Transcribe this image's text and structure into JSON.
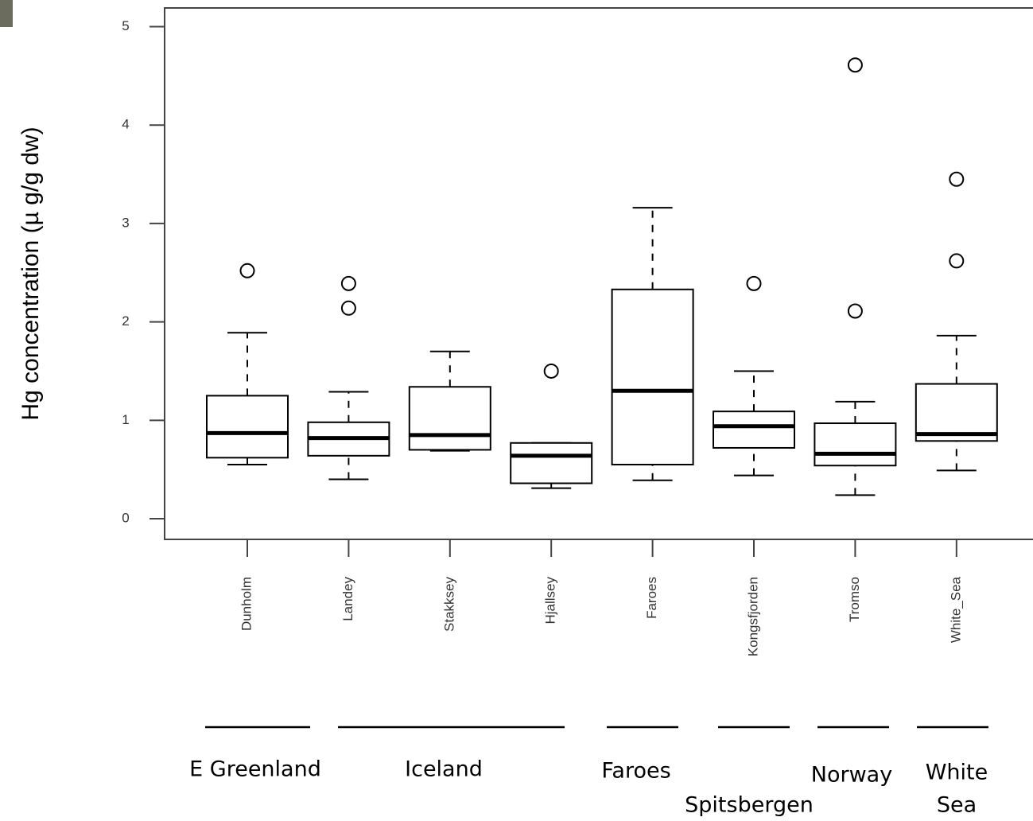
{
  "chart_data": {
    "type": "box",
    "y_label": "Hg concentration (µ g/g dw)",
    "categories": [
      "Dunholm",
      "Landey",
      "Stakksey",
      "Hjallsey",
      "Faroes",
      "Kongsfjorden",
      "Tromso",
      "White_Sea"
    ],
    "whisker_low": [
      0.55,
      0.4,
      0.69,
      0.31,
      0.39,
      0.44,
      0.24,
      0.49
    ],
    "q1": [
      0.62,
      0.64,
      0.7,
      0.36,
      0.55,
      0.72,
      0.54,
      0.79
    ],
    "median": [
      0.87,
      0.82,
      0.85,
      0.64,
      1.3,
      0.94,
      0.66,
      0.86
    ],
    "q3": [
      1.25,
      0.98,
      1.34,
      0.77,
      2.33,
      1.09,
      0.97,
      1.37
    ],
    "whisker_high": [
      1.89,
      1.29,
      1.7,
      0.77,
      3.16,
      1.5,
      1.19,
      1.86
    ],
    "outliers": [
      [
        2.52
      ],
      [
        2.39,
        2.14
      ],
      [],
      [
        1.5
      ],
      [],
      [
        2.39
      ],
      [
        2.11,
        4.61
      ],
      [
        2.62,
        3.45
      ]
    ],
    "ylim": [
      -0.21,
      5.19
    ],
    "yticks": [
      0,
      1,
      2,
      3,
      4,
      5
    ],
    "color": "#000000",
    "regions": [
      [
        "E Greenland"
      ],
      [
        "Iceland"
      ],
      [
        "Faroes"
      ],
      [
        "Spitsbergen"
      ],
      [
        "Norway"
      ],
      [
        "White",
        "Sea"
      ]
    ]
  }
}
